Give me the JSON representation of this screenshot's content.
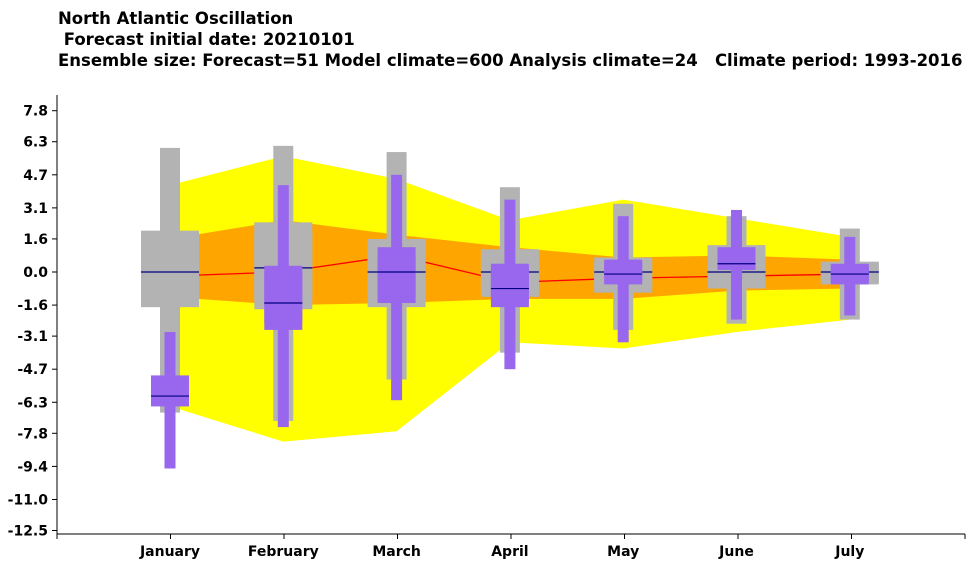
{
  "chart_data": {
    "type": "boxplot",
    "title": "North Atlantic Oscillation",
    "subtitle_1": " Forecast initial date: 20210101",
    "subtitle_2": "Ensemble size: Forecast=51 Model climate=600 Analysis climate=24   Climate period: 1993-2016",
    "categories": [
      "January",
      "February",
      "March",
      "April",
      "May",
      "June",
      "July"
    ],
    "yticks": [
      "7.8",
      "6.3",
      "4.7",
      "3.1",
      "1.6",
      "0.0",
      "-1.6",
      "-3.1",
      "-4.7",
      "-6.3",
      "-7.8",
      "-9.4",
      "-11.0",
      "-12.5"
    ],
    "ylim": [
      -12.5,
      7.8
    ],
    "colors": {
      "outer_envelope": "#ffff00",
      "inner_envelope": "#ffa500",
      "median_line": "#ff0000",
      "climate_box": "#b3b3b3",
      "forecast_box": "#9966ee",
      "median_mark": "#000080"
    },
    "climate_envelope": {
      "outer_upper": [
        4.2,
        5.6,
        4.5,
        2.5,
        3.5,
        2.6,
        1.7
      ],
      "inner_upper": [
        1.6,
        2.5,
        1.8,
        1.2,
        0.7,
        0.8,
        0.6
      ],
      "median": [
        -0.2,
        0.0,
        0.8,
        -0.5,
        -0.3,
        -0.2,
        -0.1
      ],
      "inner_lower": [
        -1.2,
        -1.6,
        -1.5,
        -1.3,
        -1.3,
        -0.9,
        -0.8
      ],
      "outer_lower": [
        -6.5,
        -8.2,
        -7.7,
        -3.4,
        -3.7,
        -2.9,
        -2.3
      ]
    },
    "model_climate": [
      {
        "min": -6.8,
        "q25": -1.7,
        "median": 0.0,
        "q75": 2.0,
        "max": 6.0
      },
      {
        "min": -7.2,
        "q25": -1.8,
        "median": 0.2,
        "q75": 2.4,
        "max": 6.1
      },
      {
        "min": -5.2,
        "q25": -1.7,
        "median": 0.0,
        "q75": 1.6,
        "max": 5.8
      },
      {
        "min": -3.9,
        "q25": -1.2,
        "median": 0.0,
        "q75": 1.1,
        "max": 4.1
      },
      {
        "min": -2.8,
        "q25": -1.0,
        "median": 0.0,
        "q75": 0.7,
        "max": 3.3
      },
      {
        "min": -2.5,
        "q25": -0.8,
        "median": 0.0,
        "q75": 1.3,
        "max": 2.7
      },
      {
        "min": -2.3,
        "q25": -0.6,
        "median": 0.0,
        "q75": 0.5,
        "max": 2.1
      }
    ],
    "forecast": [
      {
        "min": -9.5,
        "q25": -6.5,
        "median": -6.0,
        "q75": -5.0,
        "max": -2.9
      },
      {
        "min": -7.5,
        "q25": -2.8,
        "median": -1.5,
        "q75": 0.3,
        "max": 4.2
      },
      {
        "min": -6.2,
        "q25": -1.5,
        "median": 0.0,
        "q75": 1.2,
        "max": 4.7
      },
      {
        "min": -4.7,
        "q25": -1.7,
        "median": -0.8,
        "q75": 0.4,
        "max": 3.5
      },
      {
        "min": -3.4,
        "q25": -0.6,
        "median": -0.1,
        "q75": 0.6,
        "max": 2.7
      },
      {
        "min": -2.3,
        "q25": 0.1,
        "median": 0.4,
        "q75": 1.2,
        "max": 3.0
      },
      {
        "min": -2.1,
        "q25": -0.6,
        "median": -0.1,
        "q75": 0.4,
        "max": 1.7
      }
    ]
  }
}
